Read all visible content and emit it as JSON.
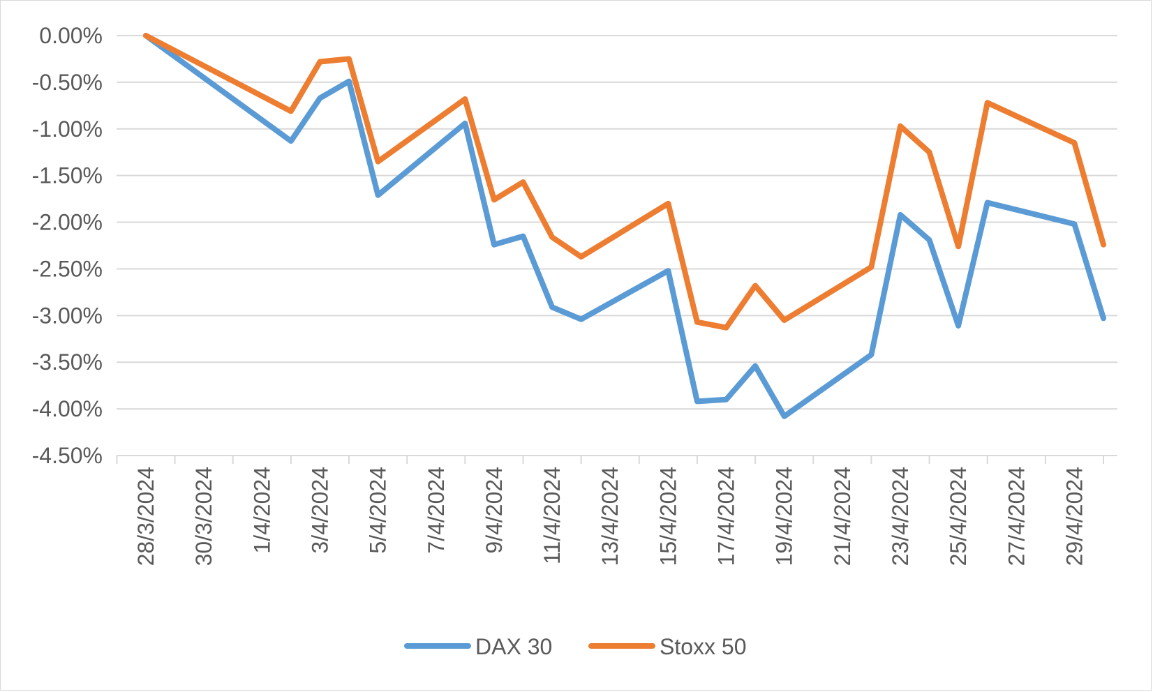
{
  "chart_data": {
    "type": "line",
    "title": "",
    "xlabel": "",
    "ylabel": "",
    "ylim": [
      -4.5,
      0
    ],
    "y_ticks": [
      0,
      -0.5,
      -1,
      -1.5,
      -2,
      -2.5,
      -3,
      -3.5,
      -4,
      -4.5
    ],
    "y_tick_labels": [
      "0.00%",
      "-0.50%",
      "-1.00%",
      "-1.50%",
      "-2.00%",
      "-2.50%",
      "-3.00%",
      "-3.50%",
      "-4.00%",
      "-4.50%"
    ],
    "x_range": [
      "2024-03-28",
      "2024-04-30"
    ],
    "x_tick_labels": [
      "28/3/2024",
      "30/3/2024",
      "1/4/2024",
      "3/4/2024",
      "5/4/2024",
      "7/4/2024",
      "9/4/2024",
      "11/4/2024",
      "13/4/2024",
      "15/4/2024",
      "17/4/2024",
      "19/4/2024",
      "21/4/2024",
      "23/4/2024",
      "25/4/2024",
      "27/4/2024",
      "29/4/2024"
    ],
    "x_tick_dates": [
      "2024-03-28",
      "2024-03-30",
      "2024-04-01",
      "2024-04-03",
      "2024-04-05",
      "2024-04-07",
      "2024-04-09",
      "2024-04-11",
      "2024-04-13",
      "2024-04-15",
      "2024-04-17",
      "2024-04-19",
      "2024-04-21",
      "2024-04-23",
      "2024-04-25",
      "2024-04-27",
      "2024-04-29"
    ],
    "grid": "horizontal",
    "legend_position": "bottom",
    "x": [
      "2024-03-28",
      "2024-04-02",
      "2024-04-03",
      "2024-04-04",
      "2024-04-05",
      "2024-04-08",
      "2024-04-09",
      "2024-04-10",
      "2024-04-11",
      "2024-04-12",
      "2024-04-15",
      "2024-04-16",
      "2024-04-17",
      "2024-04-18",
      "2024-04-19",
      "2024-04-22",
      "2024-04-23",
      "2024-04-24",
      "2024-04-25",
      "2024-04-26",
      "2024-04-29",
      "2024-04-30"
    ],
    "series": [
      {
        "name": "DAX 30",
        "color": "#5B9BD5",
        "values": [
          0.0,
          -1.13,
          -0.67,
          -0.49,
          -1.71,
          -0.94,
          -2.24,
          -2.15,
          -2.91,
          -3.04,
          -2.52,
          -3.92,
          -3.9,
          -3.54,
          -4.08,
          -3.42,
          -1.92,
          -2.19,
          -3.11,
          -1.79,
          -2.02,
          -3.03
        ]
      },
      {
        "name": "Stoxx 50",
        "color": "#ED7D31",
        "values": [
          0.0,
          -0.81,
          -0.28,
          -0.25,
          -1.35,
          -0.68,
          -1.76,
          -1.57,
          -2.16,
          -2.37,
          -1.8,
          -3.07,
          -3.13,
          -2.68,
          -3.05,
          -2.48,
          -0.97,
          -1.25,
          -2.26,
          -0.72,
          -1.15,
          -2.24
        ]
      }
    ],
    "gridline_color": "#d9d9d9"
  }
}
